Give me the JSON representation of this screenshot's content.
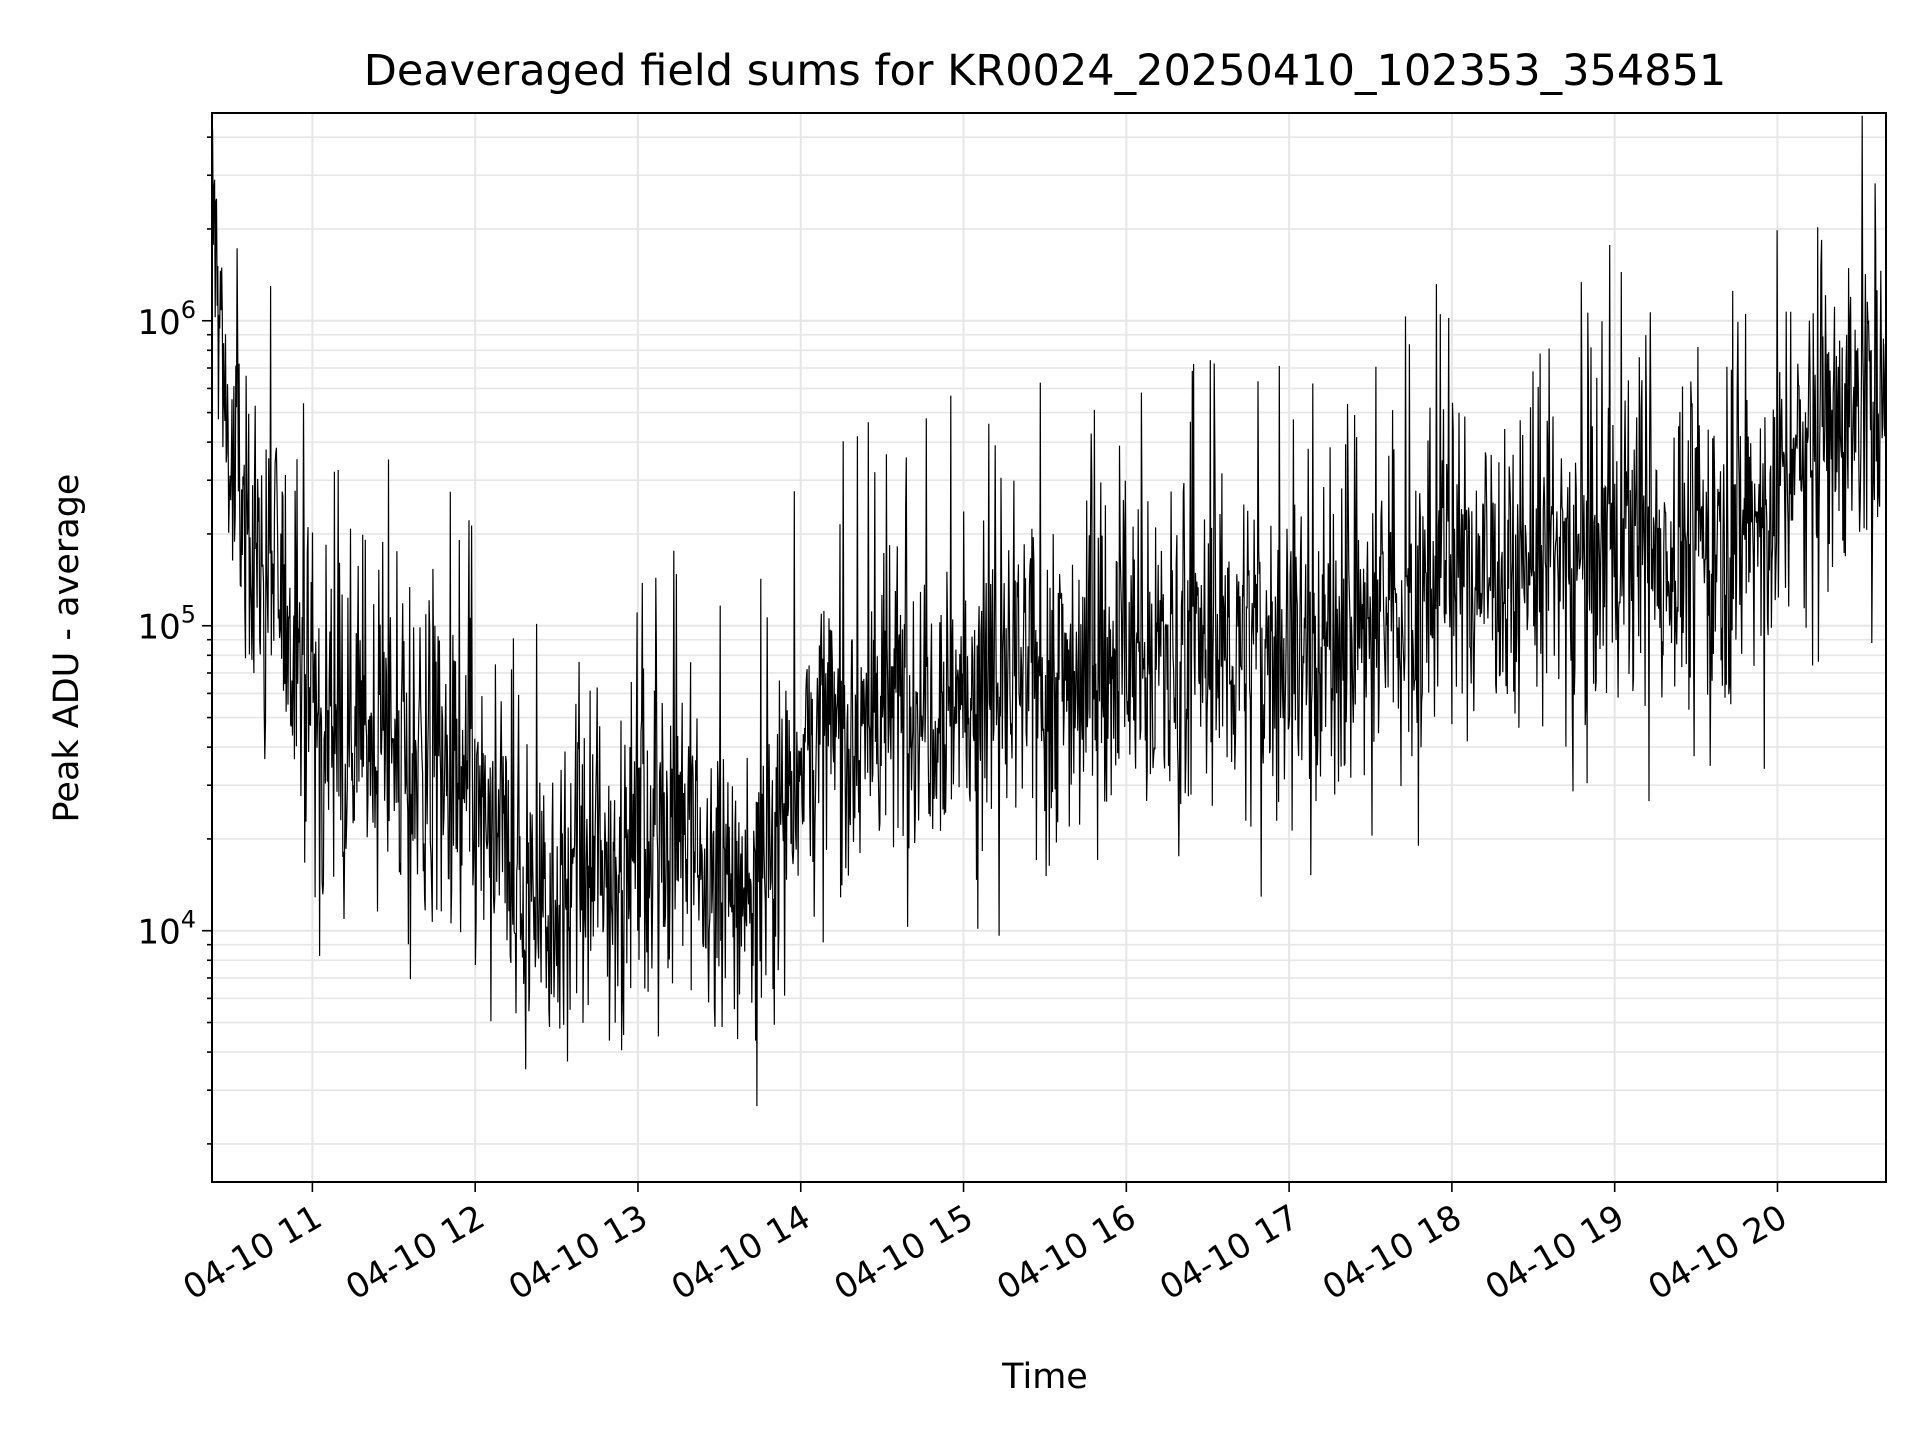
{
  "chart_data": {
    "type": "line",
    "title": "Deaveraged field sums for KR0024_20250410_102353_354851",
    "xlabel": "Time",
    "ylabel": "Peak ADU - average",
    "x_axis": {
      "kind": "datetime",
      "xlim": [
        "2025-04-10 10:23",
        "2025-04-10 20:40"
      ],
      "ticks": [
        {
          "value": "2025-04-10 11:00",
          "label": "04-10 11"
        },
        {
          "value": "2025-04-10 12:00",
          "label": "04-10 12"
        },
        {
          "value": "2025-04-10 13:00",
          "label": "04-10 13"
        },
        {
          "value": "2025-04-10 14:00",
          "label": "04-10 14"
        },
        {
          "value": "2025-04-10 15:00",
          "label": "04-10 15"
        },
        {
          "value": "2025-04-10 16:00",
          "label": "04-10 16"
        },
        {
          "value": "2025-04-10 17:00",
          "label": "04-10 17"
        },
        {
          "value": "2025-04-10 18:00",
          "label": "04-10 18"
        },
        {
          "value": "2025-04-10 19:00",
          "label": "04-10 19"
        },
        {
          "value": "2025-04-10 20:00",
          "label": "04-10 20"
        }
      ]
    },
    "y_axis": {
      "scale": "log",
      "ylim": [
        1500,
        4800000
      ],
      "ticks": [
        {
          "value": 10000,
          "base": "10",
          "exp": "4"
        },
        {
          "value": 100000,
          "base": "10",
          "exp": "5"
        },
        {
          "value": 1000000,
          "base": "10",
          "exp": "6"
        }
      ]
    },
    "grid": true,
    "line_color": "#000000",
    "series": [
      {
        "x": [
          "10:23",
          "10:30",
          "10:40",
          "10:50",
          "11:00",
          "11:15",
          "11:30",
          "11:45",
          "12:00",
          "12:15",
          "12:30",
          "12:45",
          "13:00",
          "13:15",
          "13:30",
          "13:45",
          "14:00",
          "14:20",
          "14:40",
          "15:00",
          "15:20",
          "15:40",
          "16:00",
          "16:20",
          "16:40",
          "17:00",
          "17:20",
          "17:40",
          "18:00",
          "18:20",
          "18:40",
          "19:00",
          "19:20",
          "19:40",
          "20:00",
          "20:10",
          "20:20",
          "20:30",
          "20:40"
        ],
        "y": [
          2500000,
          300000,
          180000,
          120000,
          55000,
          50000,
          40000,
          30000,
          25000,
          14000,
          13000,
          15000,
          20000,
          25000,
          12000,
          15000,
          40000,
          45000,
          60000,
          60000,
          65000,
          70000,
          80000,
          80000,
          85000,
          85000,
          90000,
          110000,
          150000,
          160000,
          170000,
          180000,
          170000,
          200000,
          250000,
          400000,
          500000,
          520000,
          550000
        ]
      }
    ]
  }
}
